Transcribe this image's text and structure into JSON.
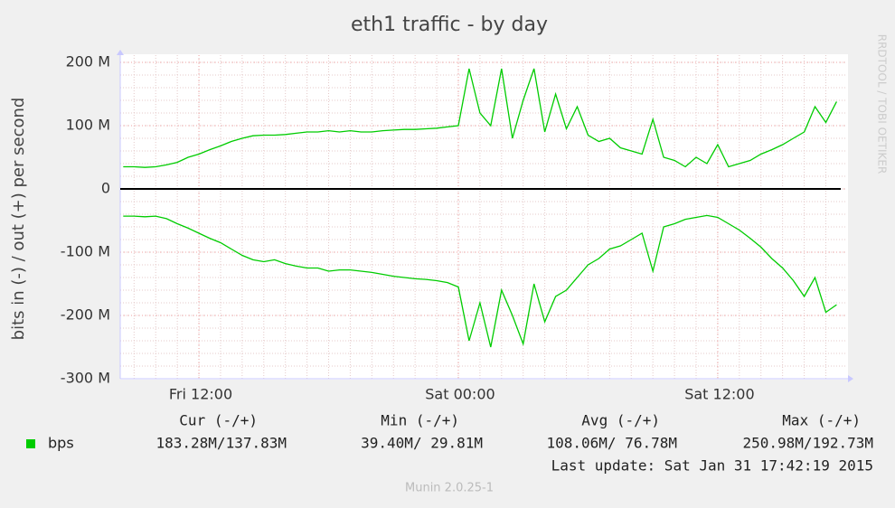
{
  "chart_data": {
    "type": "line",
    "title": "eth1 traffic - by day",
    "y_label": "bits in (-) / out (+) per second",
    "side_text": "RRDTOOL / TOBI OETIKER",
    "ylim": [
      -300,
      200
    ],
    "yticks": [
      {
        "value": -300,
        "label": "-300 M"
      },
      {
        "value": -200,
        "label": "-200 M"
      },
      {
        "value": -100,
        "label": "-100 M"
      },
      0,
      {
        "value": 100,
        "label": "100 M"
      },
      {
        "value": 200,
        "label": "200 M"
      }
    ],
    "xlim": [
      8.36,
      41.9
    ],
    "xticks": [
      {
        "value": 12,
        "label": "Fri 12:00"
      },
      {
        "value": 24,
        "label": "Sat 00:00"
      },
      {
        "value": 36,
        "label": "Sat 12:00"
      }
    ],
    "grid": true,
    "x": [
      8.5,
      9,
      9.5,
      10,
      10.5,
      11,
      11.5,
      12,
      12.5,
      13,
      13.5,
      14,
      14.5,
      15,
      15.5,
      16,
      16.5,
      17,
      17.5,
      18,
      18.5,
      19,
      19.5,
      20,
      20.5,
      21,
      21.5,
      22,
      22.5,
      23,
      23.5,
      24,
      24.5,
      25,
      25.5,
      26,
      26.5,
      27,
      27.5,
      28,
      28.5,
      29,
      29.5,
      30,
      30.5,
      31,
      31.5,
      32,
      32.5,
      33,
      33.5,
      34,
      34.5,
      35,
      35.5,
      36,
      36.5,
      37,
      37.5,
      38,
      38.5,
      39,
      39.5,
      40,
      40.5,
      41,
      41.5
    ],
    "series": [
      {
        "name": "bps",
        "color": "#00cc00",
        "values": [
          35,
          35,
          34,
          35,
          38,
          42,
          50,
          55,
          62,
          68,
          75,
          80,
          84,
          85,
          85,
          86,
          88,
          90,
          90,
          92,
          90,
          92,
          90,
          90,
          92,
          93,
          94,
          94,
          95,
          96,
          98,
          100,
          190,
          120,
          100,
          190,
          80,
          140,
          190,
          90,
          150,
          95,
          130,
          85,
          75,
          80,
          65,
          60,
          55,
          110,
          50,
          45,
          35,
          50,
          40,
          70,
          35,
          40,
          45,
          55,
          62,
          70,
          80,
          90,
          130,
          105,
          138
        ]
      },
      {
        "color": "#00cc00",
        "values": [
          -43,
          -43,
          -44,
          -43,
          -47,
          -55,
          -62,
          -70,
          -78,
          -85,
          -95,
          -105,
          -112,
          -115,
          -112,
          -118,
          -122,
          -125,
          -125,
          -130,
          -128,
          -128,
          -130,
          -132,
          -135,
          -138,
          -140,
          -142,
          -143,
          -145,
          -148,
          -155,
          -240,
          -180,
          -250,
          -160,
          -200,
          -245,
          -150,
          -210,
          -170,
          -160,
          -140,
          -120,
          -110,
          -95,
          -90,
          -80,
          -70,
          -130,
          -60,
          -55,
          -48,
          -45,
          -42,
          -45,
          -55,
          -65,
          -78,
          -92,
          -110,
          -125,
          -145,
          -170,
          -140,
          -195,
          -183
        ]
      }
    ],
    "legend_table": {
      "headers": [
        "Cur (-/+)",
        "Min (-/+)",
        "Avg (-/+)",
        "Max (-/+)"
      ],
      "cells": [
        "183.28M/137.83M",
        "39.40M/ 29.81M",
        "108.06M/ 76.78M",
        "250.98M/192.73M"
      ]
    },
    "last_update": "Last update: Sat Jan 31 17:42:19 2015",
    "footer": "Munin 2.0.25-1"
  }
}
